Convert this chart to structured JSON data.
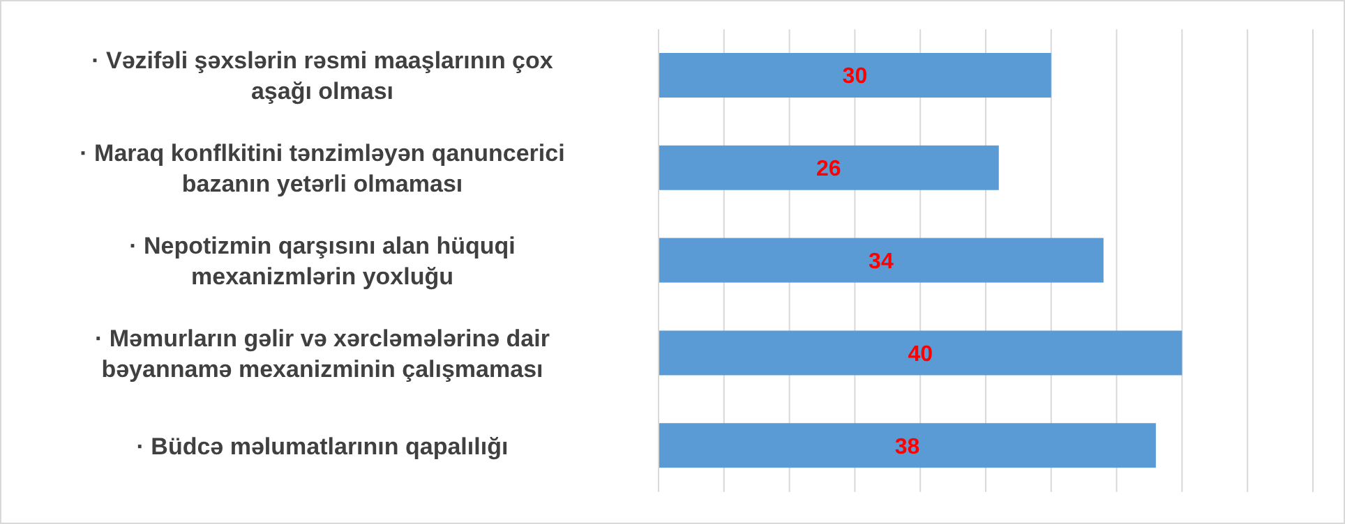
{
  "chart_data": {
    "type": "bar",
    "orientation": "horizontal",
    "categories": [
      "·         Vəzifəli şəxslərin rəsmi maaşlarının çox aşağı olması",
      "·         Maraq konflkitini tənzimləyən qanuncerici bazanın yetərli olmaması",
      "·         Nepotizmin qarşısını alan hüquqi mexanizmlərin yoxluğu",
      "·         Məmurların gəlir və xərcləmələrinə dair bəyannamə mexanizminin çalışmaması",
      "·         Büdcə məlumatlarının qapalılığı"
    ],
    "values": [
      30,
      26,
      34,
      40,
      38
    ],
    "color": "#5b9bd5",
    "xlim": [
      0,
      50
    ],
    "xticks": [
      {
        "value": 0,
        "label": null
      },
      {
        "value": 5,
        "label": null
      },
      {
        "value": 10,
        "label": null
      },
      {
        "value": 15,
        "label": null
      },
      {
        "value": 20,
        "label": null
      },
      {
        "value": 25,
        "label": null
      },
      {
        "value": 30,
        "label": null
      },
      {
        "value": 35,
        "label": null
      },
      {
        "value": 40,
        "label": null
      },
      {
        "value": 45,
        "label": null
      },
      {
        "value": 50,
        "label": null
      }
    ],
    "grid": "x",
    "tick_labels": "y",
    "data_labels": true
  }
}
